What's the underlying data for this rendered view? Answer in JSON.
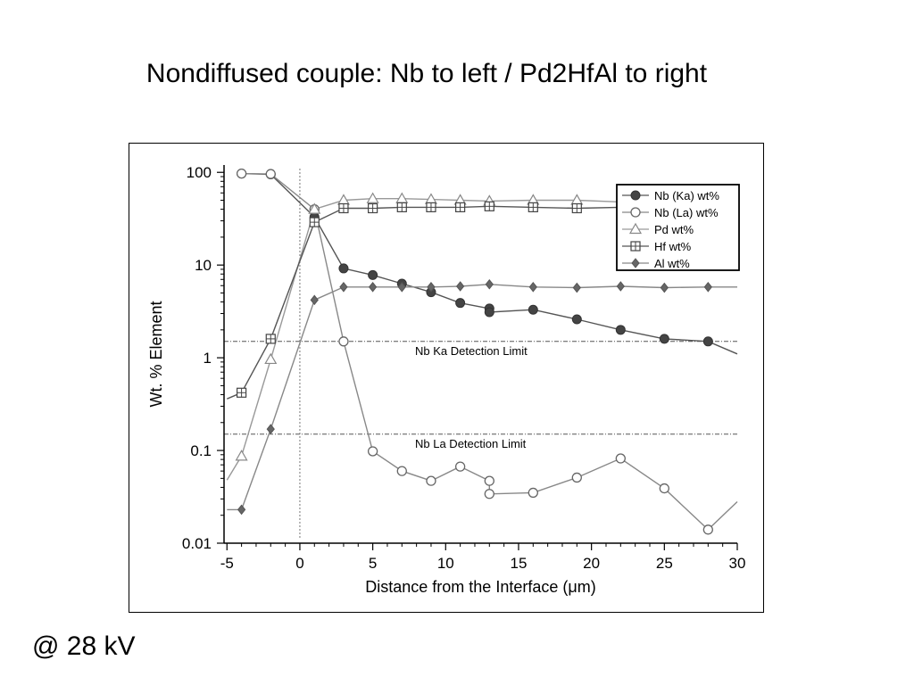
{
  "slide": {
    "title": "Nondiffused couple: Nb to left / Pd2HfAl to right",
    "footnote": "@ 28 kV"
  },
  "chart_data": {
    "type": "line",
    "title": "",
    "xlabel": "Distance from the Interface (μm)",
    "ylabel": "Wt. % Element",
    "xlim": [
      -5.2,
      30
    ],
    "ylim": [
      0.01,
      120
    ],
    "yscale": "log",
    "xticks": [
      -5,
      0,
      5,
      10,
      15,
      20,
      25,
      30
    ],
    "yticks": [
      {
        "value": 0.01,
        "label": "0.01"
      },
      {
        "value": 0.1,
        "label": "0.1"
      },
      {
        "value": 1,
        "label": "1"
      },
      {
        "value": 10,
        "label": "10"
      },
      {
        "value": 100,
        "label": "100"
      }
    ],
    "legend_position": "top-right",
    "grid": false,
    "series": [
      {
        "name": "Nb (Ka) wt%",
        "marker": "filled-circle",
        "color": "#555555",
        "x": [
          -4,
          -2,
          1,
          3,
          5,
          7,
          9,
          11,
          13,
          13,
          16,
          19,
          22,
          25,
          28,
          30
        ],
        "y": [
          97,
          95,
          33,
          9.2,
          7.8,
          6.3,
          5.1,
          3.9,
          3.4,
          3.1,
          3.3,
          2.6,
          2.0,
          1.6,
          1.5,
          1.1
        ],
        "markers": [
          1,
          1,
          1,
          1,
          1,
          1,
          1,
          1,
          1,
          1,
          1,
          1,
          1,
          1,
          1,
          0
        ]
      },
      {
        "name": "Nb (La) wt%",
        "marker": "open-circle",
        "color": "#888888",
        "x": [
          -4,
          -2,
          1,
          3,
          5,
          7,
          9,
          11,
          13,
          13,
          16,
          19,
          22,
          25,
          28,
          30
        ],
        "y": [
          97,
          96,
          40,
          1.5,
          0.098,
          0.06,
          0.047,
          0.067,
          0.047,
          0.034,
          0.035,
          0.051,
          0.082,
          0.039,
          0.014,
          0.028
        ],
        "markers": [
          1,
          1,
          1,
          1,
          1,
          1,
          1,
          1,
          1,
          1,
          1,
          1,
          1,
          1,
          1,
          0
        ]
      },
      {
        "name": "Pd wt%",
        "marker": "open-triangle",
        "color": "#999999",
        "x": [
          -5,
          -4,
          -2,
          1,
          3,
          5,
          7,
          9,
          11,
          13,
          16,
          19,
          22
        ],
        "y": [
          0.048,
          0.087,
          0.96,
          40,
          50,
          52,
          52,
          51,
          50,
          49,
          50,
          50,
          48
        ],
        "markers": [
          0,
          1,
          1,
          1,
          1,
          1,
          1,
          1,
          1,
          1,
          1,
          1,
          0
        ]
      },
      {
        "name": "Hf wt%",
        "marker": "boxed-plus",
        "color": "#555555",
        "x": [
          -5,
          -4,
          -2,
          1,
          3,
          5,
          7,
          9,
          11,
          13,
          16,
          19,
          22
        ],
        "y": [
          0.36,
          0.42,
          1.6,
          29,
          41,
          41,
          42,
          42,
          42,
          43,
          42,
          41,
          42
        ],
        "markers": [
          0,
          1,
          1,
          1,
          1,
          1,
          1,
          1,
          1,
          1,
          1,
          1,
          0
        ]
      },
      {
        "name": "Al wt%",
        "marker": "filled-diamond",
        "color": "#888888",
        "x": [
          -5,
          -4,
          -2,
          1,
          3,
          5,
          7,
          9,
          11,
          13,
          16,
          19,
          22,
          25,
          28,
          30
        ],
        "y": [
          0.023,
          0.023,
          0.17,
          4.2,
          5.8,
          5.8,
          5.8,
          5.8,
          5.9,
          6.2,
          5.8,
          5.7,
          5.9,
          5.7,
          5.8,
          5.8
        ],
        "markers": [
          0,
          1,
          1,
          1,
          1,
          1,
          1,
          1,
          1,
          1,
          1,
          1,
          1,
          1,
          1,
          0
        ]
      }
    ],
    "reference_lines": [
      {
        "axis": "y",
        "value": 1.5,
        "label": "Nb Ka Detection Limit"
      },
      {
        "axis": "y",
        "value": 0.15,
        "label": "Nb La Detection Limit"
      },
      {
        "axis": "x",
        "value": 0,
        "label": ""
      }
    ]
  }
}
